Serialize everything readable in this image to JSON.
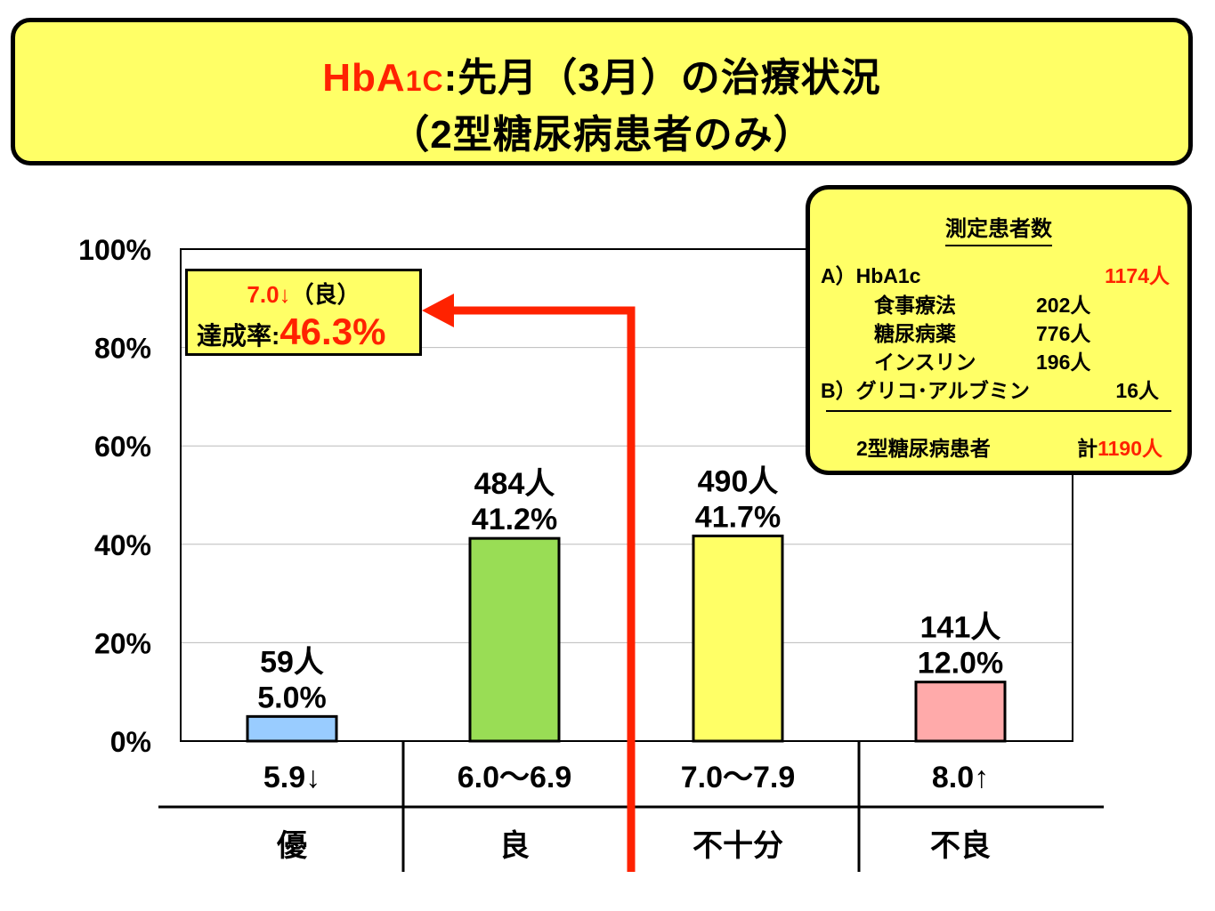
{
  "title": {
    "brand": "HbA",
    "brand_sub": "1C",
    "line1_rest": ":先月（3月）の治療状況",
    "line2": "（2型糖尿病患者のみ）"
  },
  "annotation": {
    "threshold": "7.0↓",
    "threshold_label": "（良）",
    "rate_label": "達成率:",
    "rate_value": "46.3%"
  },
  "info_box": {
    "title": "測定患者数",
    "a_label": "A）HbA1c",
    "a_total": "1174人",
    "a_items": [
      {
        "label": "食事療法",
        "value": "202人"
      },
      {
        "label": "糖尿病薬",
        "value": "776人"
      },
      {
        "label": "インスリン",
        "value": "196人"
      }
    ],
    "b_label": "B）グリコ･アルブミン",
    "b_value": "16人",
    "footer_label": "2型糖尿病患者",
    "footer_prefix": "計",
    "footer_total": "1190人"
  },
  "chart_data": {
    "type": "bar",
    "categories": [
      "5.9↓",
      "6.0～6.9",
      "7.0～7.9",
      "8.0↑"
    ],
    "grades": [
      "優",
      "良",
      "不十分",
      "不良"
    ],
    "values": [
      5.0,
      41.2,
      41.7,
      12.0
    ],
    "counts": [
      "59人",
      "484人",
      "490人",
      "141人"
    ],
    "percent_labels": [
      "5.0%",
      "41.2%",
      "41.7%",
      "12.0%"
    ],
    "ylim": [
      0,
      100
    ],
    "yticks": [
      "0%",
      "20%",
      "40%",
      "60%",
      "80%",
      "100%"
    ],
    "grid": true,
    "colors": [
      "#99ccff",
      "#99dd55",
      "#ffff66",
      "#ffaaaa"
    ],
    "arrow_color": "#ff2200"
  }
}
